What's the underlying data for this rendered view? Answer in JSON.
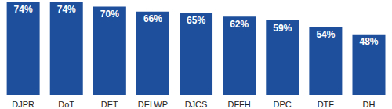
{
  "chart_data": {
    "type": "bar",
    "categories": [
      "DJPR",
      "DoT",
      "DET",
      "DELWP",
      "DJCS",
      "DFFH",
      "DPC",
      "DTF",
      "DH"
    ],
    "values": [
      74,
      74,
      70,
      66,
      65,
      62,
      59,
      54,
      48
    ],
    "value_labels": [
      "74%",
      "74%",
      "70%",
      "66%",
      "65%",
      "62%",
      "59%",
      "54%",
      "48%"
    ],
    "color": "#1d4f9c",
    "data_labels": true,
    "tick_labels": "x",
    "grid": false
  }
}
